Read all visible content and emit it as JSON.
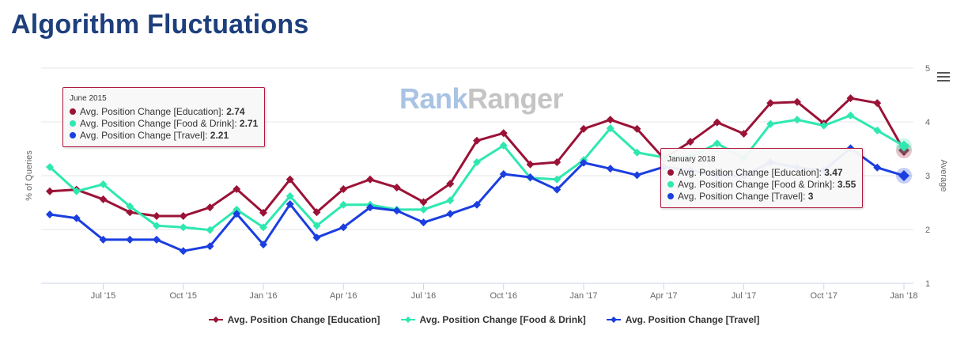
{
  "title": "Algorithm Fluctuations",
  "watermark": {
    "part1": "Rank",
    "part2": "Ranger"
  },
  "menu_icon": "hamburger-icon",
  "chart_data": {
    "type": "line",
    "title": "Algorithm Fluctuations",
    "ylabel_left": "% of Queries",
    "ylabel_right": "Average",
    "ylim": [
      1,
      5
    ],
    "yticks": [
      "1",
      "2",
      "3",
      "4",
      "5"
    ],
    "x": [
      "May 2015",
      "Jun 2015",
      "Jul 2015",
      "Aug 2015",
      "Sep 2015",
      "Oct 2015",
      "Nov 2015",
      "Dec 2015",
      "Jan 2016",
      "Feb 2016",
      "Mar 2016",
      "Apr 2016",
      "May 2016",
      "Jun 2016",
      "Jul 2016",
      "Aug 2016",
      "Sep 2016",
      "Oct 2016",
      "Nov 2016",
      "Dec 2016",
      "Jan 2017",
      "Feb 2017",
      "Mar 2017",
      "Apr 2017",
      "May 2017",
      "Jun 2017",
      "Jul 2017",
      "Aug 2017",
      "Sep 2017",
      "Oct 2017",
      "Nov 2017",
      "Dec 2017",
      "Jan 2018"
    ],
    "xticks": [
      {
        "i": 2,
        "label": "Jul '15"
      },
      {
        "i": 5,
        "label": "Oct '15"
      },
      {
        "i": 8,
        "label": "Jan '16"
      },
      {
        "i": 11,
        "label": "Apr '16"
      },
      {
        "i": 14,
        "label": "Jul '16"
      },
      {
        "i": 17,
        "label": "Oct '16"
      },
      {
        "i": 20,
        "label": "Jan '17"
      },
      {
        "i": 23,
        "label": "Apr '17"
      },
      {
        "i": 26,
        "label": "Jul '17"
      },
      {
        "i": 29,
        "label": "Oct '17"
      },
      {
        "i": 32,
        "label": "Jan '18"
      }
    ],
    "grid": true,
    "legend_position": "bottom",
    "series": [
      {
        "name": "Avg. Position Change [Education]",
        "color": "#9b1237",
        "values": [
          2.71,
          2.74,
          2.56,
          2.32,
          2.25,
          2.25,
          2.41,
          2.75,
          2.31,
          2.93,
          2.32,
          2.75,
          2.93,
          2.78,
          2.51,
          2.85,
          3.65,
          3.79,
          3.21,
          3.25,
          3.87,
          4.04,
          3.87,
          3.32,
          3.63,
          3.99,
          3.78,
          4.35,
          4.37,
          3.97,
          4.44,
          4.35,
          3.47
        ]
      },
      {
        "name": "Avg. Position Change [Food & Drink]",
        "color": "#2ee8b0",
        "values": [
          3.16,
          2.71,
          2.84,
          2.43,
          2.07,
          2.04,
          1.99,
          2.37,
          2.04,
          2.62,
          2.07,
          2.46,
          2.46,
          2.37,
          2.37,
          2.54,
          3.25,
          3.56,
          2.96,
          2.93,
          3.29,
          3.88,
          3.43,
          3.34,
          3.35,
          3.6,
          3.32,
          3.96,
          4.04,
          3.93,
          4.12,
          3.84,
          3.55
        ]
      },
      {
        "name": "Avg. Position Change [Travel]",
        "color": "#1a3ee0",
        "values": [
          2.28,
          2.21,
          1.81,
          1.81,
          1.81,
          1.6,
          1.69,
          2.29,
          1.72,
          2.47,
          1.85,
          2.04,
          2.41,
          2.35,
          2.13,
          2.29,
          2.46,
          3.03,
          2.97,
          2.74,
          3.24,
          3.13,
          3.01,
          3.16,
          3.1,
          3.0,
          3.0,
          3.25,
          3.15,
          3.1,
          3.51,
          3.15,
          3.0
        ]
      }
    ]
  },
  "tooltips": [
    {
      "header": "June 2015",
      "rows": [
        {
          "label": "Avg. Position Change [Education]: ",
          "value": "2.74"
        },
        {
          "label": "Avg. Position Change [Food & Drink]: ",
          "value": "2.71"
        },
        {
          "label": "Avg. Position Change [Travel]: ",
          "value": "2.21"
        }
      ]
    },
    {
      "header": "January 2018",
      "rows": [
        {
          "label": "Avg. Position Change [Education]: ",
          "value": "3.47"
        },
        {
          "label": "Avg. Position Change [Food & Drink]: ",
          "value": "3.55"
        },
        {
          "label": "Avg. Position Change [Travel]: ",
          "value": "3"
        }
      ]
    }
  ]
}
